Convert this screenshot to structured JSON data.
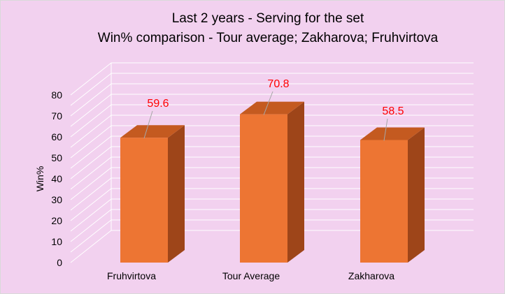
{
  "chart_data": {
    "type": "bar",
    "title": "Last 2 years - Serving for the set",
    "subtitle": "Win% comparison - Tour average; Zakharova; Fruhvirtova",
    "categories": [
      "Fruhvirtova",
      "Tour Average",
      "Zakharova"
    ],
    "values": [
      59.6,
      70.8,
      58.5
    ],
    "value_labels": [
      "59.6",
      "70.8",
      "58.5"
    ],
    "xlabel": "",
    "ylabel": "Win%",
    "ylim": [
      0,
      80
    ],
    "yticks": [
      "0",
      "10",
      "20",
      "30",
      "40",
      "50",
      "60",
      "70",
      "80"
    ],
    "grid": true,
    "legend": "none",
    "style": "3d-column"
  },
  "colors": {
    "background": "#f2d1ef",
    "bar_front": "#ed7533",
    "bar_top": "#c45a20",
    "bar_side": "#9e4519",
    "gridline": "#ffffff",
    "data_label": "#ff0000",
    "leader_line": "#a6a6a6"
  }
}
